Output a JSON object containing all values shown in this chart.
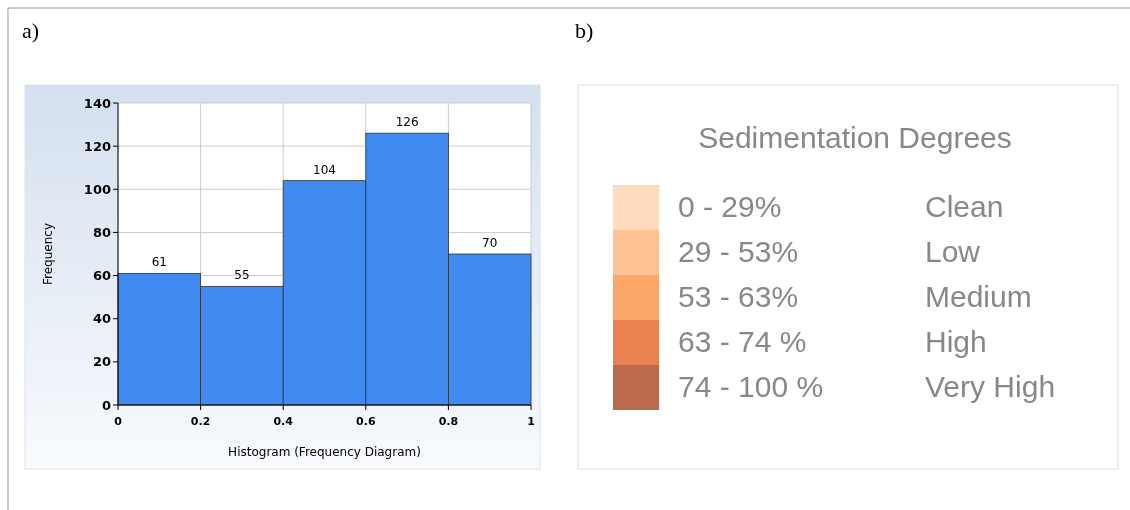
{
  "chart_data": [
    {
      "type": "histogram",
      "annotations": [
        "a)"
      ],
      "xlabel": "Histogram (Frequency Diagram)",
      "ylabel": "Frequency",
      "bins": [
        0,
        0.2,
        0.4,
        0.6,
        0.8,
        1
      ],
      "values": [
        61,
        55,
        104,
        126,
        70
      ],
      "color": "#418af0",
      "xlim": [
        0,
        1
      ],
      "xticks": [
        0,
        0.2,
        0.4,
        0.6,
        0.8,
        1
      ],
      "ylim": [
        0,
        140
      ],
      "yticks": [
        0,
        20,
        40,
        60,
        80,
        100,
        120,
        140
      ],
      "grid": true,
      "data_labels": true
    },
    {
      "type": "other",
      "annotations": [
        "b)",
        "Clean",
        "Low",
        "Medium",
        "High",
        "Very High"
      ],
      "title": "Sedimentation Degrees",
      "categories": [
        "0 - 29%",
        "29 - 53%",
        "53 - 63%",
        "63 - 74 %",
        "74 - 100 %"
      ],
      "colors": [
        "#fedbbd",
        "#fdc193",
        "#fca66a",
        "#ea8250",
        "#bb6b4b"
      ]
    }
  ]
}
